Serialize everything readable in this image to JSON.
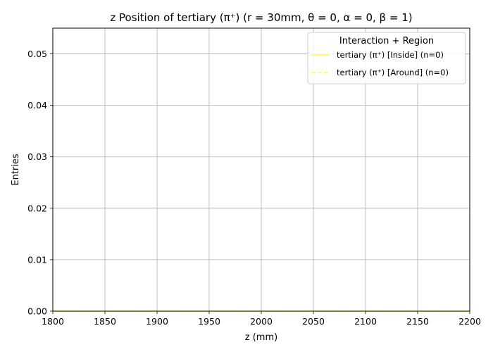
{
  "chart_data": {
    "type": "line",
    "title": "z Position of tertiary (π⁺) (r = 30mm, θ = 0, α = 0, β = 1)",
    "xlabel": "z (mm)",
    "ylabel": "Entries",
    "xlim": [
      1800,
      2200
    ],
    "ylim": [
      0,
      0.055
    ],
    "x_ticks": [
      1800,
      1850,
      1900,
      1950,
      2000,
      2050,
      2100,
      2150,
      2200
    ],
    "y_ticks": [
      0.0,
      0.01,
      0.02,
      0.03,
      0.04,
      0.05
    ],
    "x_tick_labels": [
      "1800",
      "1850",
      "1900",
      "1950",
      "2000",
      "2050",
      "2100",
      "2150",
      "2200"
    ],
    "y_tick_labels": [
      "0.00",
      "0.01",
      "0.02",
      "0.03",
      "0.04",
      "0.05"
    ],
    "grid": true,
    "legend": {
      "title": "Interaction + Region",
      "placement": "top-right"
    },
    "series": [
      {
        "name": "tertiary (π⁺) [Inside] (n=0)",
        "color": "#ffff33",
        "style": "solid",
        "x": [
          1800,
          2200
        ],
        "y": [
          0,
          0
        ]
      },
      {
        "name": "tertiary (π⁺) [Around] (n=0)",
        "color": "#ffff33",
        "style": "dashed",
        "x": [
          1800,
          2200
        ],
        "y": [
          0,
          0
        ]
      }
    ]
  }
}
